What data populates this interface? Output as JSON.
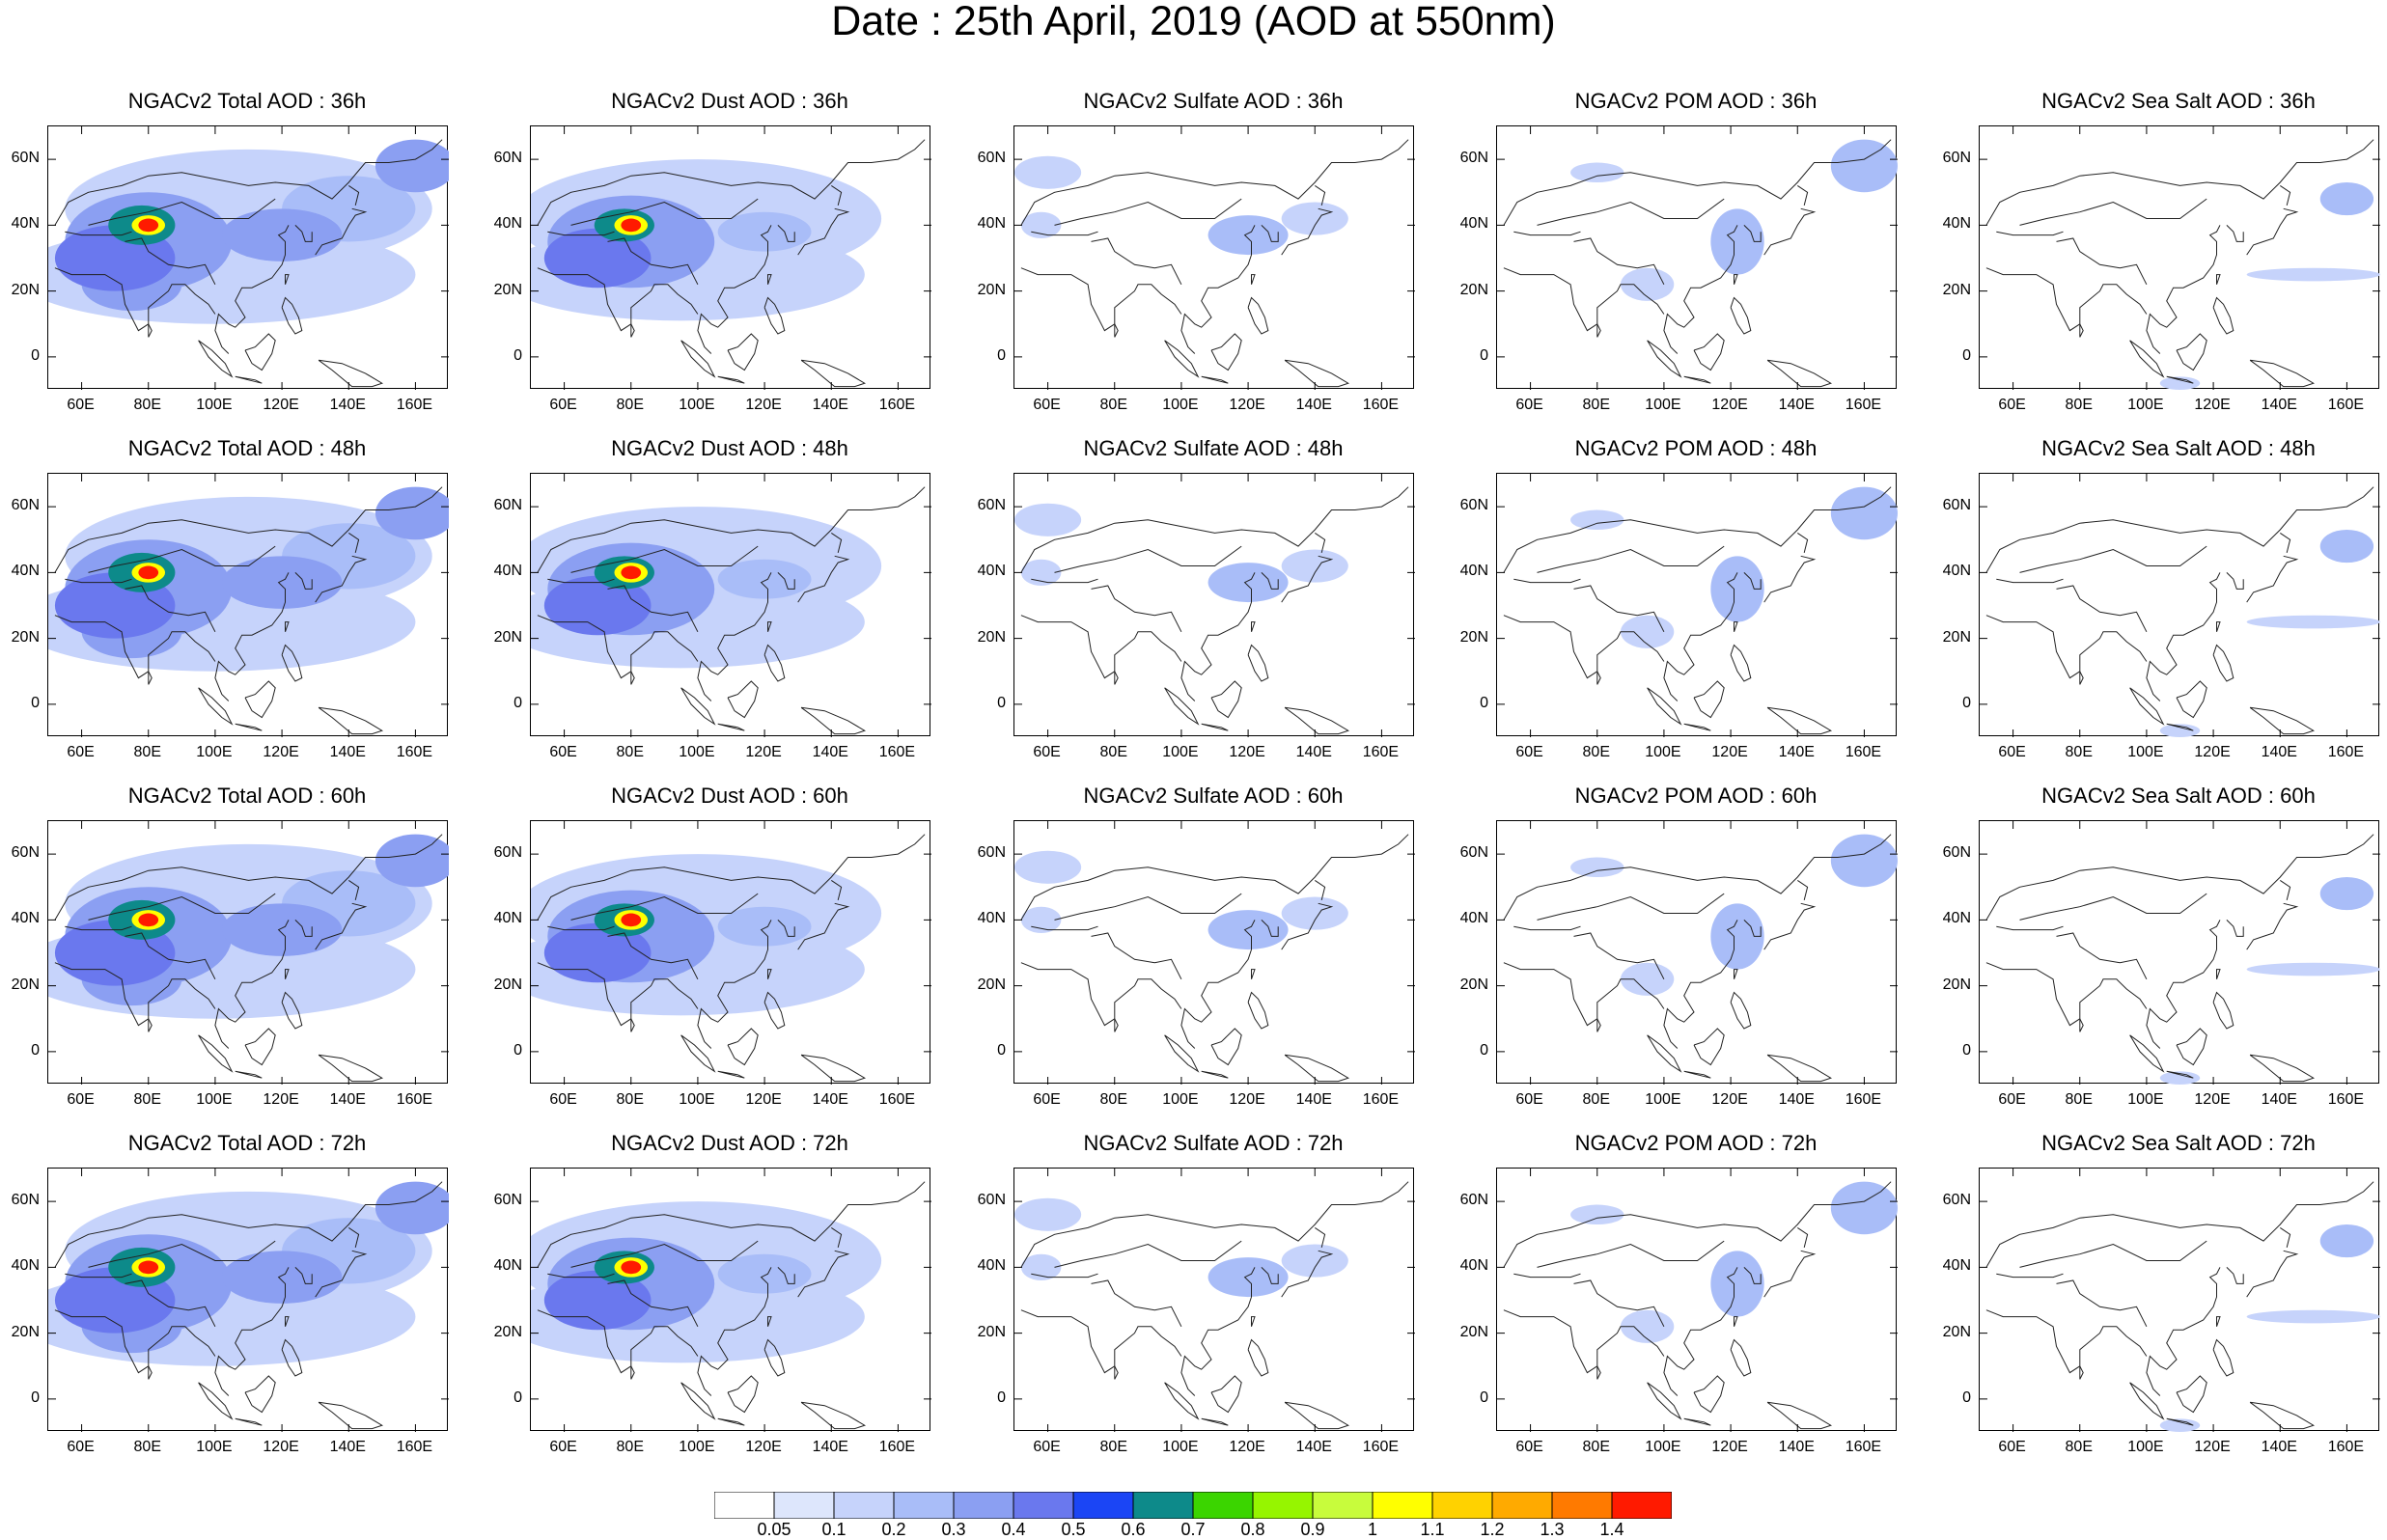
{
  "title": "Date : 25th April, 2019 (AOD at 550nm)",
  "chart_data": {
    "type": "heatmap",
    "layout": {
      "rows": 4,
      "cols": 5
    },
    "species": [
      "Total",
      "Dust",
      "Sulfate",
      "POM",
      "Sea Salt"
    ],
    "forecast_hours": [
      "36h",
      "48h",
      "60h",
      "72h"
    ],
    "panel_titles": [
      [
        "NGACv2 Total AOD : 36h",
        "NGACv2 Dust AOD : 36h",
        "NGACv2 Sulfate AOD : 36h",
        "NGACv2 POM AOD : 36h",
        "NGACv2 Sea Salt AOD : 36h"
      ],
      [
        "NGACv2 Total AOD : 48h",
        "NGACv2 Dust AOD : 48h",
        "NGACv2 Sulfate AOD : 48h",
        "NGACv2 POM AOD : 48h",
        "NGACv2 Sea Salt AOD : 48h"
      ],
      [
        "NGACv2 Total AOD : 60h",
        "NGACv2 Dust AOD : 60h",
        "NGACv2 Sulfate AOD : 60h",
        "NGACv2 POM AOD : 60h",
        "NGACv2 Sea Salt AOD : 60h"
      ],
      [
        "NGACv2 Total AOD : 72h",
        "NGACv2 Dust AOD : 72h",
        "NGACv2 Sulfate AOD : 72h",
        "NGACv2 POM AOD : 72h",
        "NGACv2 Sea Salt  AOD : 72h"
      ]
    ],
    "x_range": [
      50,
      170
    ],
    "y_range": [
      -10,
      70
    ],
    "x_ticks": [
      60,
      80,
      100,
      120,
      140,
      160
    ],
    "x_tick_labels": [
      "60E",
      "80E",
      "100E",
      "120E",
      "140E",
      "160E"
    ],
    "y_ticks": [
      60,
      40,
      20,
      0
    ],
    "y_tick_labels": [
      "60N",
      "40N",
      "20N",
      "0"
    ],
    "colorbar": {
      "colors": [
        "#ffffff",
        "#dde6fc",
        "#c6d3fb",
        "#a9bdf8",
        "#8b9ff2",
        "#6a78ee",
        "#1b45f5",
        "#0d8a8a",
        "#3bd500",
        "#96f500",
        "#c8fc3c",
        "#ffff00",
        "#ffd200",
        "#ffaa00",
        "#ff7a00",
        "#ff1a00"
      ],
      "labels": [
        "0.05",
        "0.1",
        "0.2",
        "0.3",
        "0.4",
        "0.5",
        "0.6",
        "0.7",
        "0.8",
        "0.9",
        "1",
        "1.1",
        "1.2",
        "1.3",
        "1.4"
      ],
      "label_values": [
        0.05,
        0.1,
        0.2,
        0.3,
        0.4,
        0.5,
        0.6,
        0.7,
        0.8,
        0.9,
        1,
        1.1,
        1.2,
        1.3,
        1.4
      ]
    }
  }
}
